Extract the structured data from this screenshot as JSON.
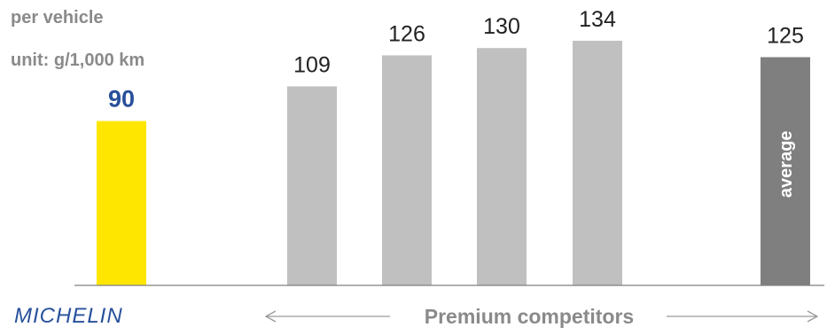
{
  "colors": {
    "brand": "#ffe600",
    "competitor": "#c0c0c0",
    "average": "#7f7f7f",
    "brand_text": "#27509b",
    "axis": "#7f7f7f",
    "note_text": "#8a8a8a"
  },
  "notes": {
    "line1": "per vehicle",
    "line2": "unit: g/1,000 km"
  },
  "brand_label": "MICHELIN",
  "competitors_label": "Premium competitors",
  "chart_data": {
    "type": "bar",
    "title": "",
    "xlabel": "",
    "ylabel": "",
    "ylim": [
      0,
      150
    ],
    "grid": false,
    "categories": [
      "MICHELIN",
      "Premium competitor 1",
      "Premium competitor 2",
      "Premium competitor 3",
      "Premium competitor 4",
      "average"
    ],
    "values": [
      90,
      109,
      126,
      130,
      134,
      125
    ],
    "data_labels": [
      "90",
      "109",
      "126",
      "130",
      "134",
      "125"
    ],
    "bar_kinds": [
      "brand",
      "competitor",
      "competitor",
      "competitor",
      "competitor",
      "average"
    ],
    "inside_bar_label": "average"
  }
}
